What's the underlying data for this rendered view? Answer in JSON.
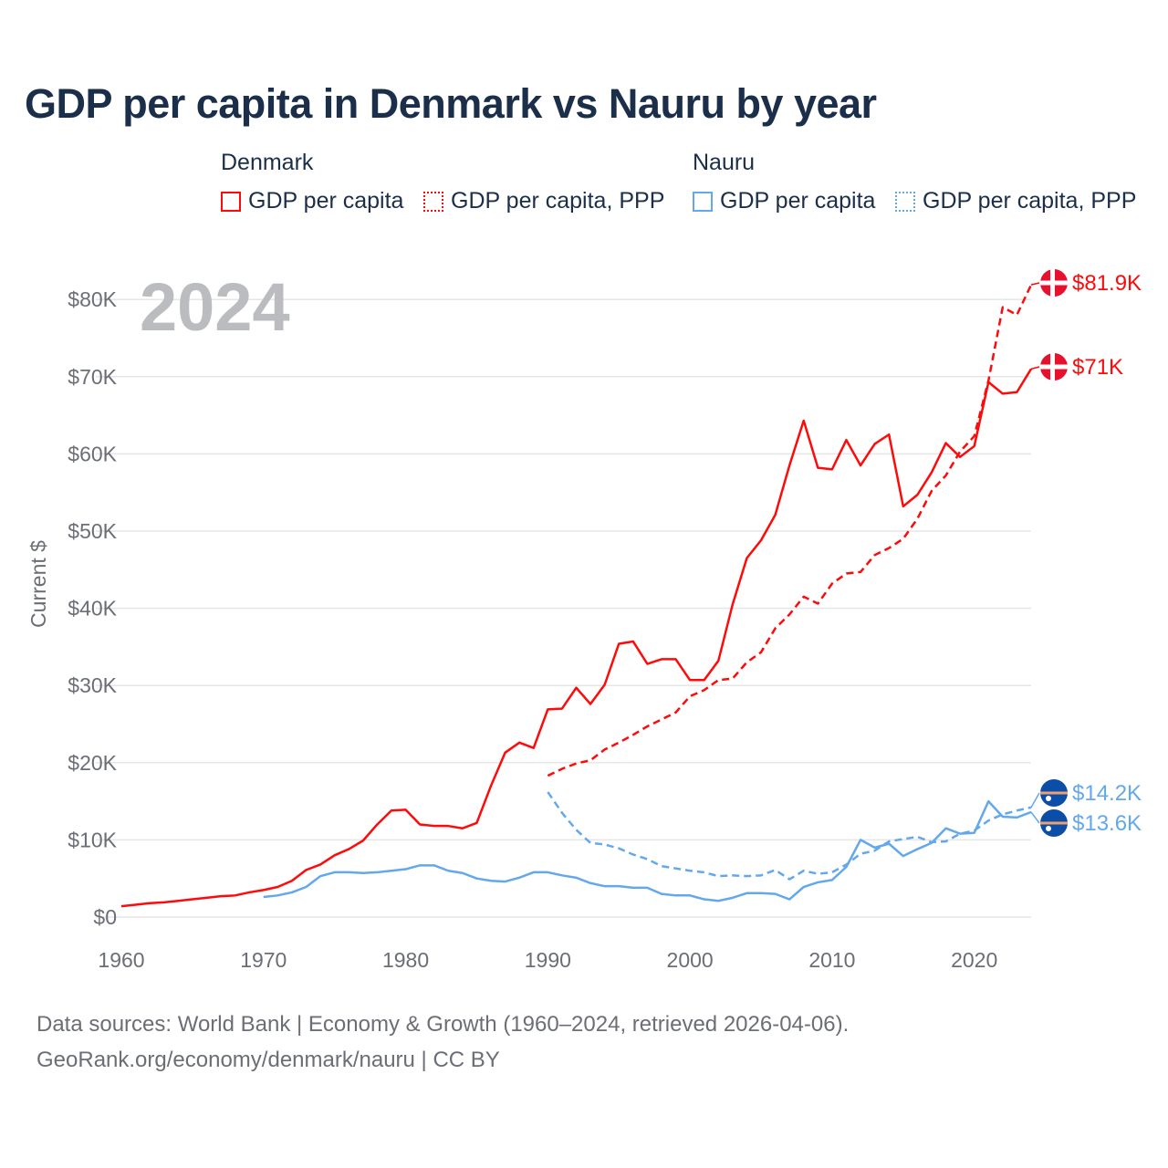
{
  "title": "GDP per capita in Denmark vs Nauru by year",
  "year_label": "2024",
  "legend": {
    "groups": [
      {
        "name": "Denmark",
        "items": [
          "GDP per capita",
          "GDP per capita, PPP"
        ]
      },
      {
        "name": "Nauru",
        "items": [
          "GDP per capita",
          "GDP per capita, PPP"
        ]
      }
    ]
  },
  "footer": {
    "line1": "Data sources: World Bank | Economy & Growth (1960–2024, retrieved 2026-04-06).",
    "line2": "GeoRank.org/economy/denmark/nauru | CC BY"
  },
  "colors": {
    "denmark": "#ff0a0a",
    "nauru": "#63a8ec",
    "grid": "#e6e6e6",
    "text": "#1b2f4b",
    "muted": "#6b6e75"
  },
  "chart_data": {
    "type": "line",
    "title": "GDP per capita in Denmark vs Nauru by year",
    "xlabel": "",
    "ylabel": "Current $",
    "xlim": [
      1960,
      2024
    ],
    "ylim": [
      0,
      80000
    ],
    "x_ticks": [
      1960,
      1970,
      1980,
      1990,
      2000,
      2010,
      2020
    ],
    "x_tick_labels": [
      "1960",
      "1970",
      "1980",
      "1990",
      "2000",
      "2010",
      "2020"
    ],
    "y_ticks": [
      0,
      10000,
      20000,
      30000,
      40000,
      50000,
      60000,
      70000,
      80000
    ],
    "y_tick_labels": [
      "$0",
      "$10K",
      "$20K",
      "$30K",
      "$40K",
      "$50K",
      "$60K",
      "$70K",
      "$80K"
    ],
    "grid": true,
    "legend_placement": "top",
    "series": [
      {
        "name": "Denmark GDP per capita",
        "country": "denmark",
        "dashed": false,
        "start": 1960,
        "end_label": "$71K",
        "values": [
          1.4,
          1.6,
          1.8,
          1.9,
          2.1,
          2.3,
          2.5,
          2.7,
          2.8,
          3.2,
          3.5,
          3.9,
          4.7,
          6.1,
          6.8,
          8.0,
          8.8,
          9.9,
          12.0,
          13.8,
          13.9,
          12.0,
          11.8,
          11.8,
          11.5,
          12.2,
          17.0,
          21.3,
          22.6,
          21.9,
          26.9,
          27.0,
          29.7,
          27.6,
          30.1,
          35.4,
          35.7,
          32.8,
          33.4,
          33.4,
          30.7,
          30.7,
          33.2,
          40.5,
          46.5,
          48.8,
          52.1,
          58.5,
          64.3,
          58.2,
          58.0,
          61.8,
          58.5,
          61.3,
          62.5,
          53.2,
          54.7,
          57.6,
          61.4,
          59.6,
          61.0,
          69.3,
          67.8,
          68.0,
          71.0
        ]
      },
      {
        "name": "Denmark GDP per capita, PPP",
        "country": "denmark",
        "dashed": true,
        "start": 1990,
        "end_label": "$81.9K",
        "values": [
          18.3,
          19.2,
          19.9,
          20.3,
          21.7,
          22.6,
          23.6,
          24.7,
          25.6,
          26.5,
          28.6,
          29.4,
          30.7,
          30.9,
          33.0,
          34.3,
          37.4,
          39.2,
          41.5,
          40.6,
          43.2,
          44.5,
          44.7,
          46.9,
          47.8,
          49.0,
          51.6,
          55.2,
          57.2,
          60.3,
          62.3,
          69.5,
          79.0,
          78.0,
          81.9
        ]
      },
      {
        "name": "Nauru GDP per capita",
        "country": "nauru",
        "dashed": false,
        "start": 1970,
        "end_label": "$13.6K",
        "values": [
          2.6,
          2.8,
          3.2,
          3.9,
          5.3,
          5.8,
          5.8,
          5.7,
          5.8,
          6.0,
          6.2,
          6.7,
          6.7,
          6.0,
          5.7,
          5.0,
          4.7,
          4.6,
          5.1,
          5.8,
          5.8,
          5.4,
          5.1,
          4.4,
          4.0,
          4.0,
          3.8,
          3.8,
          3.0,
          2.8,
          2.8,
          2.3,
          2.1,
          2.5,
          3.1,
          3.1,
          3.0,
          2.3,
          3.9,
          4.5,
          4.8,
          6.5,
          10.0,
          9.0,
          9.5,
          7.9,
          8.8,
          9.6,
          11.5,
          10.8,
          10.9,
          15.0,
          13.0,
          12.9,
          13.6
        ]
      },
      {
        "name": "Nauru GDP per capita, PPP",
        "country": "nauru",
        "dashed": true,
        "start": 1990,
        "end_label": "$14.2K",
        "values": [
          16.2,
          13.5,
          11.3,
          9.6,
          9.4,
          8.9,
          8.1,
          7.5,
          6.6,
          6.3,
          6.0,
          5.8,
          5.3,
          5.4,
          5.3,
          5.4,
          6.1,
          4.9,
          6.0,
          5.6,
          5.8,
          6.8,
          8.2,
          8.6,
          9.8,
          10.1,
          10.4,
          9.7,
          9.8,
          10.8,
          11.2,
          12.5,
          13.3,
          13.8,
          14.2
        ]
      }
    ],
    "value_unit": "thousand USD"
  }
}
